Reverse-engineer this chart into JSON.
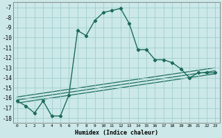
{
  "xlabel": "Humidex (Indice chaleur)",
  "background_color": "#cce8e8",
  "grid_color": "#9ecece",
  "line_color": "#1a6b5a",
  "xlim": [
    -0.5,
    23.5
  ],
  "ylim": [
    -18.5,
    -6.5
  ],
  "xticks": [
    0,
    1,
    2,
    3,
    4,
    5,
    6,
    7,
    8,
    9,
    10,
    11,
    12,
    13,
    14,
    15,
    16,
    17,
    18,
    19,
    20,
    21,
    22,
    23
  ],
  "yticks": [
    -7,
    -8,
    -9,
    -10,
    -11,
    -12,
    -13,
    -14,
    -15,
    -16,
    -17,
    -18
  ],
  "main_x": [
    0,
    1,
    2,
    3,
    4,
    5,
    6,
    7,
    8,
    9,
    10,
    11,
    12,
    13,
    14,
    15,
    16,
    17,
    18,
    19,
    20,
    21,
    22,
    23
  ],
  "main_y": [
    -16.3,
    -16.8,
    -17.5,
    -16.3,
    -17.8,
    -17.8,
    -15.7,
    -9.3,
    -9.8,
    -8.3,
    -7.5,
    -7.3,
    -7.1,
    -8.6,
    -11.2,
    -11.2,
    -12.2,
    -12.2,
    -12.5,
    -13.1,
    -14.0,
    -13.5,
    -13.5,
    -13.5
  ],
  "parallel_lines": [
    {
      "x": [
        0,
        23
      ],
      "y": [
        -16.5,
        -13.6
      ]
    },
    {
      "x": [
        0,
        23
      ],
      "y": [
        -16.2,
        -13.3
      ]
    },
    {
      "x": [
        0,
        23
      ],
      "y": [
        -15.9,
        -13.0
      ]
    }
  ]
}
